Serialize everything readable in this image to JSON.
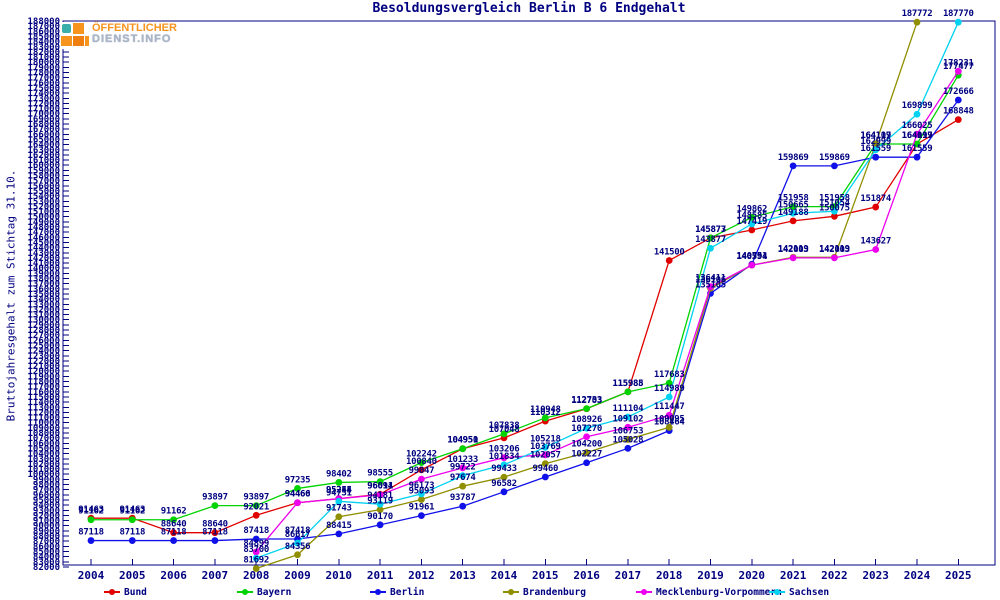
{
  "title": "Besoldungsvergleich Berlin B 6 Endgehalt",
  "y_axis_title": "Bruttojahresgehalt zum Stichtag 31.10.",
  "logo": {
    "line1": "ÖFFENTLICHER",
    "line2": "DIENST.INFO"
  },
  "colors": {
    "axis_text": "#000080",
    "bund": "#e10000",
    "bayern": "#00d300",
    "berlin": "#1010e8",
    "brandenburg": "#8f8f00",
    "mecklenburg_vorpommern": "#ee00ee",
    "sachsen": "#00d2f0"
  },
  "chart_data": {
    "type": "line",
    "x": [
      2004,
      2005,
      2006,
      2007,
      2008,
      2009,
      2010,
      2011,
      2012,
      2013,
      2014,
      2015,
      2016,
      2017,
      2018,
      2019,
      2020,
      2021,
      2022,
      2023,
      2024,
      2025
    ],
    "x_tick_labels": [
      "2004",
      "2005",
      "2006",
      "2007",
      "2008",
      "2009",
      "2010",
      "2011",
      "2012",
      "2013",
      "2014",
      "2015",
      "2016",
      "2017",
      "2018",
      "2019",
      "2020",
      "2021",
      "2022",
      "2023",
      "2024",
      "2025"
    ],
    "y_axis": {
      "min": 82000,
      "max": 188000,
      "step": 1000,
      "tick_label_format": "plain"
    },
    "grid": false,
    "legend_position": "bottom",
    "point_labels": true,
    "series": [
      {
        "name": "Bund",
        "color": "#e10000",
        "values": [
          91463,
          91463,
          88640,
          88640,
          92021,
          94460,
          95255,
          96094,
          100840,
          104950,
          107048,
          110312,
          112703,
          115985,
          141500,
          145877,
          147419,
          149188,
          150075,
          151874,
          164099,
          168848
        ]
      },
      {
        "name": "Bayern",
        "color": "#00d300",
        "values": [
          91162,
          91162,
          91162,
          93897,
          93897,
          97235,
          98402,
          98555,
          102242,
          104951,
          107838,
          110948,
          112733,
          115988,
          117683,
          145873,
          149862,
          151958,
          151958,
          164117,
          164117,
          177477
        ]
      },
      {
        "name": "Berlin",
        "color": "#1010e8",
        "values": [
          87118,
          87118,
          87118,
          87118,
          87418,
          87418,
          88415,
          90170,
          91961,
          93787,
          96582,
          99460,
          102227,
          105028,
          108464,
          135105,
          140751,
          159869,
          159869,
          161559,
          161559,
          172666
        ]
      },
      {
        "name": "Brandenburg",
        "color": "#8f8f00",
        "values": [
          null,
          null,
          null,
          null,
          81692,
          84356,
          91743,
          93119,
          95093,
          97674,
          99433,
          102057,
          104200,
          106753,
          109095,
          136106,
          140594,
          142119,
          142119,
          164109,
          187772,
          null
        ]
      },
      {
        "name": "Mecklenburg-Vorpommern",
        "color": "#ee00ee",
        "values": [
          null,
          null,
          null,
          null,
          84899,
          94466,
          95244,
          96011,
          99047,
          101233,
          103206,
          103769,
          107270,
          109102,
          111447,
          136411,
          140594,
          142003,
          142003,
          143627,
          166025,
          178231
        ]
      },
      {
        "name": "Sachsen",
        "color": "#00d2f0",
        "values": [
          null,
          null,
          null,
          null,
          83700,
          86617,
          94731,
          94181,
          96173,
          99722,
          101834,
          105218,
          108926,
          111104,
          114989,
          143877,
          148585,
          150665,
          151054,
          162999,
          169899,
          187770
        ]
      }
    ]
  }
}
